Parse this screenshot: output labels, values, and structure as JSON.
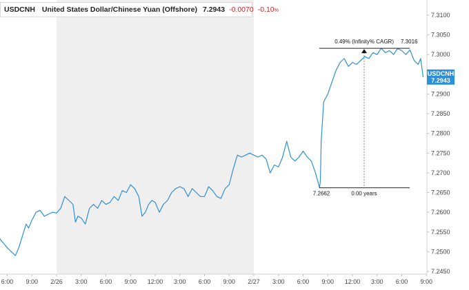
{
  "legend": {
    "symbol": "USDCNH",
    "name": "United States Dollar/Chinese Yuan (Offshore)",
    "last": "7.2943",
    "change": "-0.0070",
    "change_pct": "-0.10",
    "change_pct_unit": "%"
  },
  "price_tag": {
    "symbol": "USDCNH",
    "value": "7.2943"
  },
  "measure": {
    "cagr_label": "0.49% (Infinity% CAGR)",
    "high_label": "7.3016",
    "low_label": "7.2662",
    "duration_label": "0.00 years",
    "low": 7.2662,
    "high": 7.3016
  },
  "colors": {
    "line": "#2d8fd5",
    "shade": "#efefef",
    "tag": "#2d8fd5",
    "down": "#c62828"
  },
  "chart_data": {
    "type": "line",
    "x_unit": "hours from 2/26 00:00",
    "xlim": [
      -8,
      57
    ],
    "ylim": [
      7.2448,
      7.3118
    ],
    "x_ticks": [
      {
        "x": -6,
        "label": "6:00"
      },
      {
        "x": -3,
        "label": "9:00"
      },
      {
        "x": 0,
        "label": "2/26"
      },
      {
        "x": 3,
        "label": "3:00"
      },
      {
        "x": 6,
        "label": "6:00"
      },
      {
        "x": 9,
        "label": "9:00"
      },
      {
        "x": 12,
        "label": "12:00"
      },
      {
        "x": 15,
        "label": "3:00"
      },
      {
        "x": 18,
        "label": "6:00"
      },
      {
        "x": 21,
        "label": "9:00"
      },
      {
        "x": 24,
        "label": "2/27"
      },
      {
        "x": 27,
        "label": "3:00"
      },
      {
        "x": 30,
        "label": "6:00"
      },
      {
        "x": 33,
        "label": "9:00"
      },
      {
        "x": 36,
        "label": "12:00"
      },
      {
        "x": 39,
        "label": "3:00"
      },
      {
        "x": 42,
        "label": "6:00"
      },
      {
        "x": 45,
        "label": "9:00"
      }
    ],
    "y_ticks": [
      "7.3100",
      "7.3050",
      "7.3000",
      "7.2950",
      "7.2900",
      "7.2850",
      "7.2800",
      "7.2750",
      "7.2700",
      "7.2650",
      "7.2600",
      "7.2550",
      "7.2500",
      "7.2450"
    ],
    "shaded_ranges": [
      [
        0,
        24
      ]
    ],
    "series": [
      {
        "x": [
          -8,
          -7.2,
          -6.8,
          -6.4,
          -6,
          -5.5,
          -5,
          -4.6,
          -4.3,
          -4,
          -3.7,
          -3.4,
          -3,
          -2.5,
          -2,
          -1.5,
          -1,
          -0.5,
          0,
          0.5,
          1,
          1.5,
          2,
          2.3,
          2.6,
          3,
          3.5,
          4,
          4.5,
          5,
          5.5,
          6,
          6.5,
          7,
          7.5,
          8,
          8.5,
          9,
          9.5,
          10,
          10.4,
          10.8,
          11.2,
          11.6,
          12,
          12.5,
          13,
          13.5,
          14,
          14.5,
          15,
          15.5,
          16,
          16.5,
          17,
          17.5,
          18,
          18.5,
          19,
          19.5,
          20,
          20.5,
          21,
          21.5,
          22,
          22.5,
          23,
          23.5,
          24,
          24.5,
          25,
          25.5,
          26,
          26.5,
          27,
          27.5,
          28,
          28.5,
          29,
          29.5,
          30,
          30.5,
          31,
          31.5,
          32,
          32.1,
          32.2,
          32.5,
          33,
          33.5,
          34,
          34.5,
          35,
          35.5,
          36,
          36.5,
          37,
          37.5,
          38,
          38.5,
          39,
          39.5,
          40,
          40.5,
          41,
          41.5,
          42,
          42.5,
          43,
          43.5,
          44,
          44.3,
          44.6
        ],
        "y": [
          7.2542,
          7.2542,
          7.253,
          7.252,
          7.251,
          7.25,
          7.249,
          7.251,
          7.253,
          7.255,
          7.257,
          7.256,
          7.258,
          7.26,
          7.2605,
          7.259,
          7.2595,
          7.26,
          7.2598,
          7.261,
          7.264,
          7.263,
          7.262,
          7.2575,
          7.259,
          7.2585,
          7.257,
          7.261,
          7.262,
          7.261,
          7.263,
          7.262,
          7.2625,
          7.264,
          7.263,
          7.2655,
          7.265,
          7.267,
          7.266,
          7.264,
          7.259,
          7.26,
          7.262,
          7.263,
          7.2625,
          7.26,
          7.262,
          7.263,
          7.265,
          7.266,
          7.2665,
          7.266,
          7.264,
          7.266,
          7.265,
          7.264,
          7.264,
          7.2665,
          7.2655,
          7.264,
          7.2635,
          7.266,
          7.267,
          7.271,
          7.2745,
          7.274,
          7.2745,
          7.275,
          7.2745,
          7.274,
          7.2745,
          7.2735,
          7.27,
          7.272,
          7.2715,
          7.274,
          7.278,
          7.274,
          7.273,
          7.274,
          7.2755,
          7.274,
          7.273,
          7.27,
          7.2662,
          7.268,
          7.278,
          7.288,
          7.29,
          7.293,
          7.296,
          7.298,
          7.299,
          7.297,
          7.298,
          7.2975,
          7.2985,
          7.2995,
          7.299,
          7.3005,
          7.3,
          7.3016,
          7.3005,
          7.301,
          7.3,
          7.3015,
          7.301,
          7.3,
          7.3012,
          7.2985,
          7.2975,
          7.299,
          7.2943
        ]
      }
    ]
  }
}
